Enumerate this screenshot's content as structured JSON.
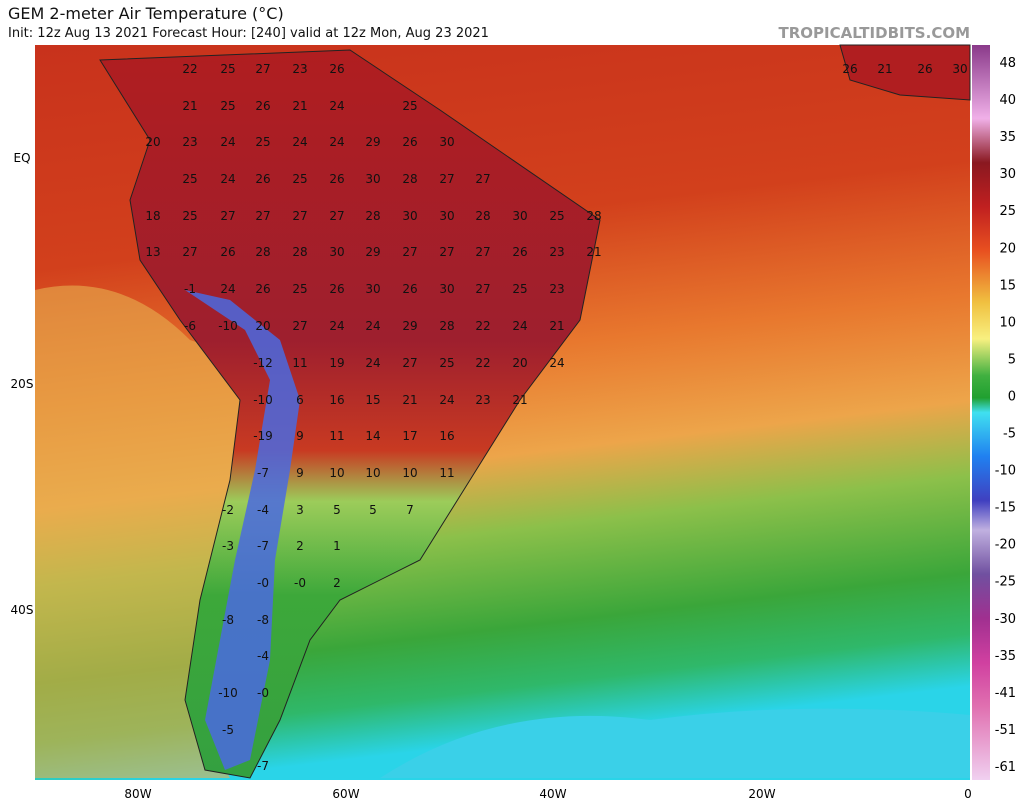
{
  "header": {
    "title": "GEM 2-meter Air Temperature (°C)",
    "init": "Init: 12z Aug 13 2021   Forecast Hour: [240]   valid at 12z Mon, Aug 23 2021",
    "site": "TROPICALTIDBITS.COM"
  },
  "axes": {
    "lat": [
      "EQ",
      "20S",
      "40S"
    ],
    "lon": [
      "80W",
      "60W",
      "40W",
      "20W",
      "0"
    ]
  },
  "colorbar": [
    "48",
    "40",
    "35",
    "30",
    "25",
    "20",
    "15",
    "10",
    "5",
    "0",
    "-5",
    "-10",
    "-15",
    "-20",
    "-25",
    "-30",
    "-35",
    "-41",
    "-51",
    "-61"
  ],
  "map_labels": [
    "22",
    "25",
    "27",
    "23",
    "26",
    "26",
    "21",
    "26",
    "30",
    "21",
    "25",
    "26",
    "21",
    "24",
    "25",
    "20",
    "23",
    "24",
    "25",
    "24",
    "24",
    "29",
    "26",
    "30",
    "25",
    "24",
    "26",
    "25",
    "26",
    "30",
    "28",
    "27",
    "27",
    "18",
    "25",
    "27",
    "27",
    "27",
    "27",
    "28",
    "30",
    "30",
    "28",
    "30",
    "25",
    "28",
    "13",
    "27",
    "26",
    "28",
    "28",
    "30",
    "29",
    "27",
    "27",
    "27",
    "26",
    "23",
    "21",
    "-1",
    "24",
    "26",
    "25",
    "26",
    "30",
    "26",
    "30",
    "27",
    "25",
    "23",
    "-6",
    "-10",
    "20",
    "27",
    "24",
    "24",
    "29",
    "28",
    "22",
    "24",
    "21",
    "-12",
    "11",
    "19",
    "24",
    "27",
    "25",
    "22",
    "20",
    "24",
    "-10",
    "6",
    "16",
    "15",
    "21",
    "24",
    "23",
    "21",
    "-19",
    "9",
    "11",
    "14",
    "17",
    "16",
    "-7",
    "9",
    "10",
    "10",
    "10",
    "11",
    "-2",
    "-4",
    "3",
    "5",
    "5",
    "7",
    "-3",
    "-7",
    "2",
    "1",
    "-0",
    "-0",
    "2",
    "-8",
    "-8",
    "-4",
    "-10",
    "-0",
    "-5",
    "-7"
  ]
}
